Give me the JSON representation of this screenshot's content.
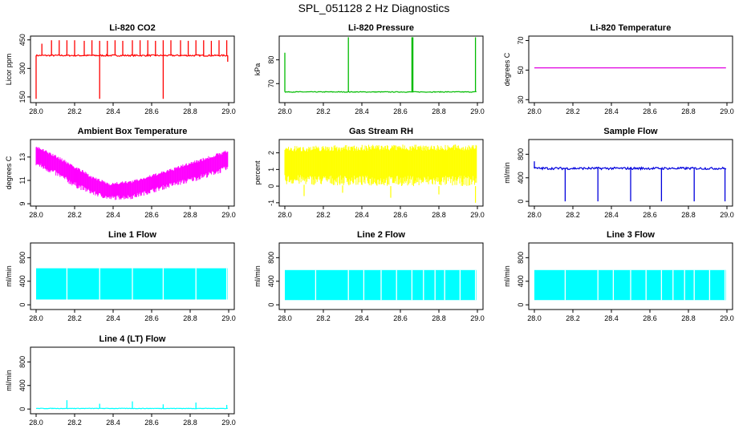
{
  "figure": {
    "title": "SPL_051128  2 Hz Diagnostics"
  },
  "chart_data": [
    {
      "type": "line",
      "title": "Li-820 CO2",
      "ylabel": "Licor ppm",
      "xlim": [
        28.0,
        29.0
      ],
      "ylim": [
        120,
        470
      ],
      "xticks": [
        "28.0",
        "28.2",
        "28.4",
        "28.6",
        "28.8",
        "29.0"
      ],
      "yticks": [
        150,
        300,
        450
      ],
      "color": "#ff0000",
      "pattern": "noise",
      "baseline": 368,
      "noise": 4,
      "spikes": [
        [
          28.0,
          140
        ],
        [
          28.03,
          430
        ],
        [
          28.08,
          448
        ],
        [
          28.12,
          448
        ],
        [
          28.16,
          448
        ],
        [
          28.2,
          448
        ],
        [
          28.25,
          445
        ],
        [
          28.29,
          448
        ],
        [
          28.33,
          445
        ],
        [
          28.33,
          140
        ],
        [
          28.37,
          445
        ],
        [
          28.41,
          448
        ],
        [
          28.45,
          445
        ],
        [
          28.5,
          448
        ],
        [
          28.54,
          448
        ],
        [
          28.58,
          448
        ],
        [
          28.62,
          445
        ],
        [
          28.66,
          448
        ],
        [
          28.66,
          140
        ],
        [
          28.7,
          448
        ],
        [
          28.75,
          448
        ],
        [
          28.79,
          445
        ],
        [
          28.83,
          448
        ],
        [
          28.87,
          448
        ],
        [
          28.91,
          445
        ],
        [
          28.95,
          448
        ],
        [
          28.99,
          448
        ],
        [
          28.995,
          335
        ]
      ]
    },
    {
      "type": "line",
      "title": "Li-820 Pressure",
      "ylabel": "kPa",
      "xlim": [
        28.0,
        29.0
      ],
      "ylim": [
        62,
        90
      ],
      "xticks": [
        "28.0",
        "28.2",
        "28.4",
        "28.6",
        "28.8",
        "29.0"
      ],
      "yticks": [
        70,
        80
      ],
      "color": "#00bb00",
      "pattern": "noise",
      "baseline": 66.5,
      "noise": 0.15,
      "spikes": [
        [
          28.0,
          83
        ],
        [
          28.33,
          89.5
        ],
        [
          28.66,
          89.5
        ],
        [
          28.665,
          89.5
        ],
        [
          28.99,
          89.5
        ]
      ]
    },
    {
      "type": "line",
      "title": "Li-820 Temperature",
      "ylabel": "degrees C",
      "xlim": [
        28.0,
        29.0
      ],
      "ylim": [
        28,
        73
      ],
      "xticks": [
        "28.0",
        "28.2",
        "28.4",
        "28.6",
        "28.8",
        "29.0"
      ],
      "yticks": [
        30,
        50,
        70
      ],
      "color": "#e000e0",
      "pattern": "flat",
      "baseline": 51.5
    },
    {
      "type": "line",
      "title": "Ambient Box Temperature",
      "ylabel": "degrees C",
      "xlim": [
        28.0,
        29.0
      ],
      "ylim": [
        8.8,
        14.5
      ],
      "xticks": [
        "28.0",
        "28.2",
        "28.4",
        "28.6",
        "28.8",
        "29.0"
      ],
      "yticks": [
        9,
        11,
        13
      ],
      "color": "#ff00ff",
      "pattern": "band",
      "band": [
        [
          28.0,
          12.2,
          14.0
        ],
        [
          28.1,
          11.4,
          13.2
        ],
        [
          28.2,
          10.4,
          12.3
        ],
        [
          28.3,
          9.7,
          11.3
        ],
        [
          28.38,
          9.3,
          10.8
        ],
        [
          28.5,
          9.4,
          11.0
        ],
        [
          28.6,
          9.9,
          11.5
        ],
        [
          28.7,
          10.4,
          12.0
        ],
        [
          28.8,
          10.8,
          12.6
        ],
        [
          28.9,
          11.3,
          13.1
        ],
        [
          28.99,
          11.8,
          13.6
        ]
      ]
    },
    {
      "type": "line",
      "title": "Gas Stream RH",
      "ylabel": "percent",
      "xlim": [
        28.0,
        29.0
      ],
      "ylim": [
        -1.2,
        2.8
      ],
      "xticks": [
        "28.0",
        "28.2",
        "28.4",
        "28.6",
        "28.8",
        "29.0"
      ],
      "yticks": [
        -1,
        0,
        1,
        2
      ],
      "color": "#ffff00",
      "pattern": "band",
      "band": [
        [
          28.0,
          0.1,
          2.4
        ],
        [
          28.5,
          0.0,
          2.5
        ],
        [
          28.99,
          0.0,
          2.5
        ]
      ],
      "dips": [
        [
          28.1,
          -0.6
        ],
        [
          28.3,
          -0.4
        ],
        [
          28.55,
          -0.7
        ],
        [
          28.8,
          -0.5
        ],
        [
          28.99,
          -1.0
        ]
      ]
    },
    {
      "type": "line",
      "title": "Sample Flow",
      "ylabel": "ml/min",
      "xlim": [
        28.0,
        29.0
      ],
      "ylim": [
        -80,
        1050
      ],
      "xticks": [
        "28.0",
        "28.2",
        "28.4",
        "28.6",
        "28.8",
        "29.0"
      ],
      "yticks": [
        0,
        400,
        800
      ],
      "color": "#0000dd",
      "pattern": "noise",
      "baseline": 560,
      "noise": 20,
      "spikes": [
        [
          28.0,
          680
        ],
        [
          28.16,
          0
        ],
        [
          28.33,
          0
        ],
        [
          28.5,
          0
        ],
        [
          28.66,
          0
        ],
        [
          28.83,
          0
        ],
        [
          28.99,
          0
        ]
      ]
    },
    {
      "type": "area",
      "title": "Line 1 Flow",
      "ylabel": "ml/min",
      "xlim": [
        28.0,
        29.0
      ],
      "ylim": [
        -80,
        1050
      ],
      "xticks": [
        "28.0",
        "28.2",
        "28.4",
        "28.6",
        "28.8",
        "29.0"
      ],
      "yticks": [
        0,
        400,
        800
      ],
      "color": "#00ffff",
      "pattern": "block",
      "low": 90,
      "high": 620,
      "gaps": [
        28.16,
        28.33,
        28.5,
        28.66,
        28.83,
        28.99
      ]
    },
    {
      "type": "area",
      "title": "Line 2 Flow",
      "ylabel": "ml/min",
      "xlim": [
        28.0,
        29.0
      ],
      "ylim": [
        -80,
        1050
      ],
      "xticks": [
        "28.0",
        "28.2",
        "28.4",
        "28.6",
        "28.8",
        "29.0"
      ],
      "yticks": [
        0,
        400,
        800
      ],
      "color": "#00ffff",
      "pattern": "block",
      "low": 80,
      "high": 590,
      "gaps": [
        28.16,
        28.33,
        28.41,
        28.5,
        28.58,
        28.66,
        28.72,
        28.78,
        28.83,
        28.91,
        28.99
      ]
    },
    {
      "type": "area",
      "title": "Line 3 Flow",
      "ylabel": "ml/min",
      "xlim": [
        28.0,
        29.0
      ],
      "ylim": [
        -80,
        1050
      ],
      "xticks": [
        "28.0",
        "28.2",
        "28.4",
        "28.6",
        "28.8",
        "29.0"
      ],
      "yticks": [
        0,
        400,
        800
      ],
      "color": "#00ffff",
      "pattern": "block",
      "low": 80,
      "high": 590,
      "gaps": [
        28.16,
        28.33,
        28.41,
        28.5,
        28.58,
        28.66,
        28.72,
        28.78,
        28.83,
        28.91,
        28.99
      ]
    },
    {
      "type": "line",
      "title": "Line 4 (LT) Flow",
      "ylabel": "ml/min",
      "xlim": [
        28.0,
        29.0
      ],
      "ylim": [
        -80,
        1050
      ],
      "xticks": [
        "28.0",
        "28.2",
        "28.4",
        "28.6",
        "28.8",
        "29.0"
      ],
      "yticks": [
        0,
        400,
        800
      ],
      "color": "#00ffff",
      "pattern": "noise",
      "baseline": 10,
      "noise": 4,
      "spikes": [
        [
          28.16,
          150
        ],
        [
          28.33,
          90
        ],
        [
          28.5,
          130
        ],
        [
          28.66,
          80
        ],
        [
          28.83,
          110
        ],
        [
          28.99,
          70
        ]
      ]
    }
  ]
}
